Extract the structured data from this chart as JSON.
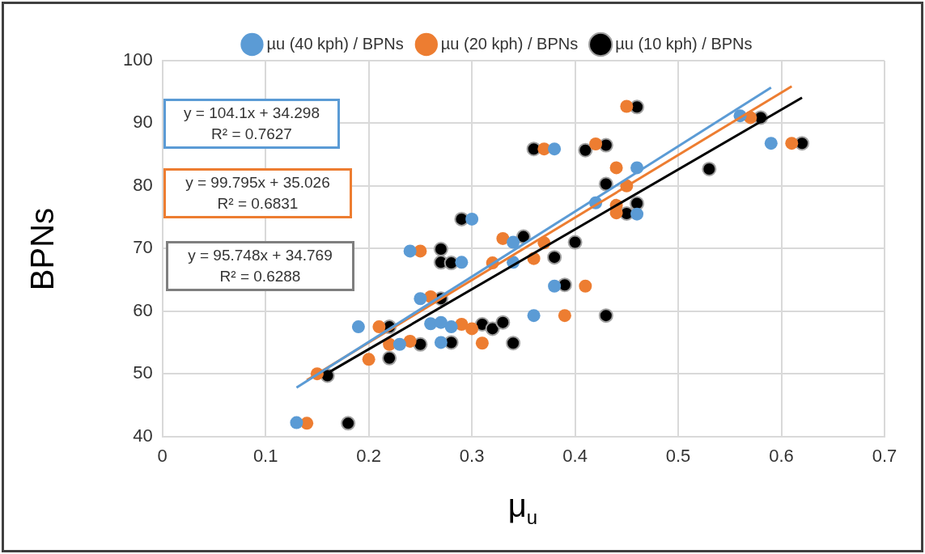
{
  "chart_data": {
    "type": "scatter",
    "xlabel": "μ$_{u}$",
    "ylabel": "BPNs",
    "xlim": [
      0,
      0.7
    ],
    "xticks": [
      0,
      0.1,
      0.2,
      0.3,
      0.4,
      0.5,
      0.6,
      0.7
    ],
    "ylim": [
      40,
      100
    ],
    "yticks": [
      40,
      50,
      60,
      70,
      80,
      90,
      100
    ],
    "grid": true,
    "legend": "top",
    "marker": "circle",
    "series": [
      {
        "name": "µu (40 kph) / BPNs",
        "color": "#5b9bd5",
        "x": [
          0.13,
          0.19,
          0.23,
          0.24,
          0.25,
          0.26,
          0.27,
          0.27,
          0.28,
          0.29,
          0.3,
          0.34,
          0.34,
          0.36,
          0.38,
          0.38,
          0.42,
          0.46,
          0.46,
          0.56,
          0.59
        ],
        "values": [
          42.2,
          57.5,
          54.7,
          69.6,
          62.0,
          58.0,
          55.0,
          58.2,
          57.5,
          67.8,
          74.7,
          71.0,
          67.8,
          59.3,
          64.0,
          85.9,
          77.3,
          82.9,
          75.5,
          91.2,
          86.8
        ]
      },
      {
        "name": "µu (20 kph) / BPNs",
        "color": "#ed7d31",
        "x": [
          0.14,
          0.15,
          0.2,
          0.21,
          0.22,
          0.24,
          0.25,
          0.26,
          0.29,
          0.3,
          0.31,
          0.32,
          0.33,
          0.36,
          0.37,
          0.37,
          0.39,
          0.41,
          0.42,
          0.44,
          0.44,
          0.44,
          0.45,
          0.45,
          0.57,
          0.61
        ],
        "values": [
          42.1,
          50.0,
          52.3,
          57.5,
          54.7,
          55.2,
          69.6,
          62.3,
          57.9,
          57.2,
          54.9,
          67.7,
          71.6,
          68.4,
          70.9,
          85.9,
          59.3,
          64.0,
          86.7,
          82.9,
          76.9,
          75.7,
          80.0,
          92.7,
          90.9,
          86.8
        ]
      },
      {
        "name": "µu (10 kph) / BPNs",
        "color": "#000000",
        "x": [
          0.16,
          0.18,
          0.22,
          0.22,
          0.25,
          0.27,
          0.27,
          0.27,
          0.28,
          0.28,
          0.29,
          0.31,
          0.32,
          0.33,
          0.34,
          0.35,
          0.36,
          0.38,
          0.39,
          0.4,
          0.41,
          0.43,
          0.43,
          0.43,
          0.45,
          0.46,
          0.46,
          0.53,
          0.58,
          0.62
        ],
        "values": [
          49.7,
          42.1,
          57.5,
          52.5,
          54.7,
          69.9,
          67.8,
          62.0,
          67.7,
          55.0,
          74.7,
          57.9,
          57.2,
          58.2,
          54.9,
          71.9,
          85.9,
          68.6,
          64.2,
          71.0,
          85.7,
          59.3,
          86.5,
          80.3,
          75.6,
          77.2,
          92.6,
          82.7,
          90.9,
          86.8
        ]
      },
      {
        "type": "line",
        "marker": "none",
        "color": "#5b9bd5",
        "x": [
          0.13,
          0.59
        ],
        "values": [
          47.8,
          95.7
        ]
      },
      {
        "type": "line",
        "marker": "none",
        "color": "#ed7d31",
        "x": [
          0.14,
          0.61
        ],
        "values": [
          49.0,
          95.9
        ]
      },
      {
        "type": "line",
        "marker": "none",
        "color": "#000000",
        "x": [
          0.16,
          0.62
        ],
        "values": [
          50.1,
          94.1
        ]
      }
    ],
    "annotations": [
      "y = 104.1x + 34.298",
      "R² = 0.7627",
      "y = 99.795x + 35.026",
      "R² = 0.6831",
      "y = 95.748x + 34.769",
      "R² = 0.6288"
    ]
  }
}
